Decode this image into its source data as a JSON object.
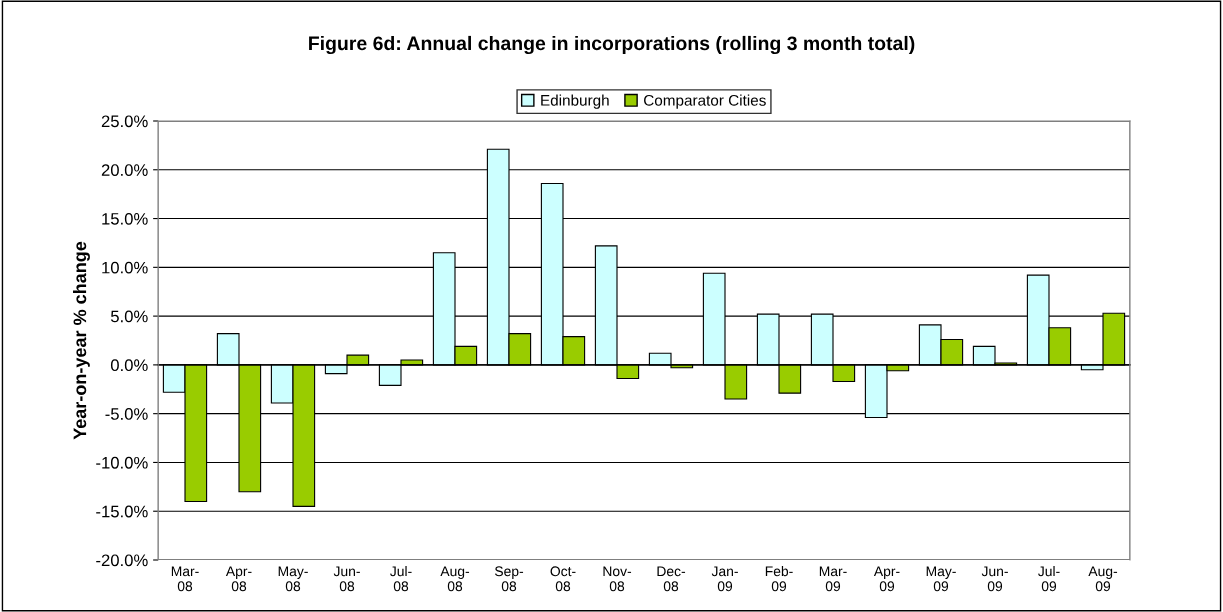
{
  "chart_data": {
    "type": "bar",
    "title": "Figure 6d: Annual change in incorporations (rolling 3 month total)",
    "ylabel": "Year-on-year % change",
    "categories": [
      "Mar-08",
      "Apr-08",
      "May-08",
      "Jun-08",
      "Jul-08",
      "Aug-08",
      "Sep-08",
      "Oct-08",
      "Nov-08",
      "Dec-08",
      "Jan-09",
      "Feb-09",
      "Mar-09",
      "Apr-09",
      "May-09",
      "Jun-09",
      "Jul-09",
      "Aug-09"
    ],
    "series": [
      {
        "name": "Edinburgh",
        "color": "#ccffff",
        "values": [
          -2.8,
          3.2,
          -3.9,
          -0.9,
          -2.1,
          11.5,
          22.1,
          18.6,
          12.2,
          1.2,
          9.4,
          5.2,
          5.2,
          -5.4,
          4.1,
          1.9,
          9.2,
          -0.5
        ]
      },
      {
        "name": "Comparator Cities",
        "color": "#99cc00",
        "values": [
          -14.0,
          -13.0,
          -14.5,
          1.0,
          0.5,
          1.9,
          3.2,
          2.9,
          -1.4,
          -0.3,
          -3.5,
          -2.9,
          -1.7,
          -0.6,
          2.6,
          0.2,
          3.8,
          5.3
        ]
      }
    ],
    "ylim": [
      -20,
      25
    ],
    "yticks": [
      {
        "value": -20,
        "label": "-20.0%"
      },
      {
        "value": -15,
        "label": "-15.0%"
      },
      {
        "value": -10,
        "label": "-10.0%"
      },
      {
        "value": -5,
        "label": "-5.0%"
      },
      {
        "value": 0,
        "label": "0.0%"
      },
      {
        "value": 5,
        "label": "5.0%"
      },
      {
        "value": 10,
        "label": "10.0%"
      },
      {
        "value": 15,
        "label": "15.0%"
      },
      {
        "value": 20,
        "label": "20.0%"
      },
      {
        "value": 25,
        "label": "25.0%"
      }
    ],
    "grid": "y",
    "legend": "top"
  }
}
